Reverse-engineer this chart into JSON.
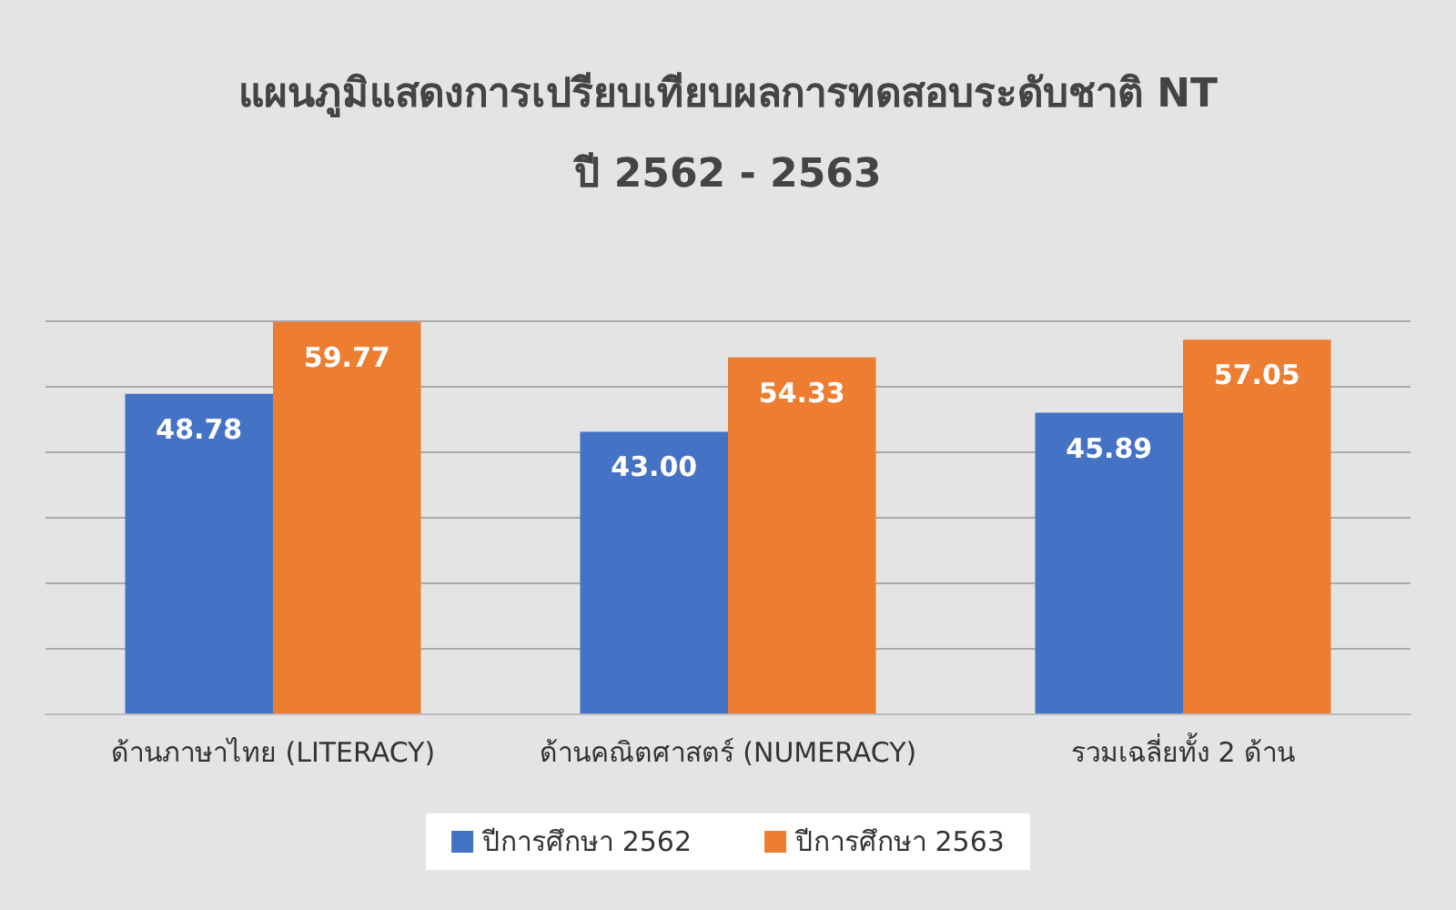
{
  "chart_data": {
    "type": "bar",
    "title": "แผนภูมิแสดงการเปรียบเทียบผลการทดสอบระดับชาติ NT\nปี 2562 - 2563",
    "categories": [
      "ด้านภาษาไทย (LITERACY)",
      "ด้านคณิตศาสตร์ (NUMERACY)",
      "รวมเฉลี่ยทั้ง 2 ด้าน"
    ],
    "series": [
      {
        "name": "ปีการศึกษา 2562",
        "color": "#4472c4",
        "values": [
          48.78,
          43.0,
          45.89
        ],
        "value_labels": [
          "48.78",
          "43.00",
          "45.89"
        ]
      },
      {
        "name": "ปีการศึกษา 2563",
        "color": "#ed7d31",
        "values": [
          59.77,
          54.33,
          57.05
        ],
        "value_labels": [
          "59.77",
          "54.33",
          "57.05"
        ]
      }
    ],
    "ylim": [
      0,
      60
    ],
    "yticks": [
      {
        "value": 0,
        "label": null
      },
      {
        "value": 10,
        "label": null
      },
      {
        "value": 20,
        "label": null
      },
      {
        "value": 30,
        "label": null
      },
      {
        "value": 40,
        "label": null
      },
      {
        "value": 50,
        "label": null
      },
      {
        "value": 60,
        "label": null
      }
    ],
    "tick_labels": "x",
    "grid": "y",
    "legend": "bottom"
  }
}
